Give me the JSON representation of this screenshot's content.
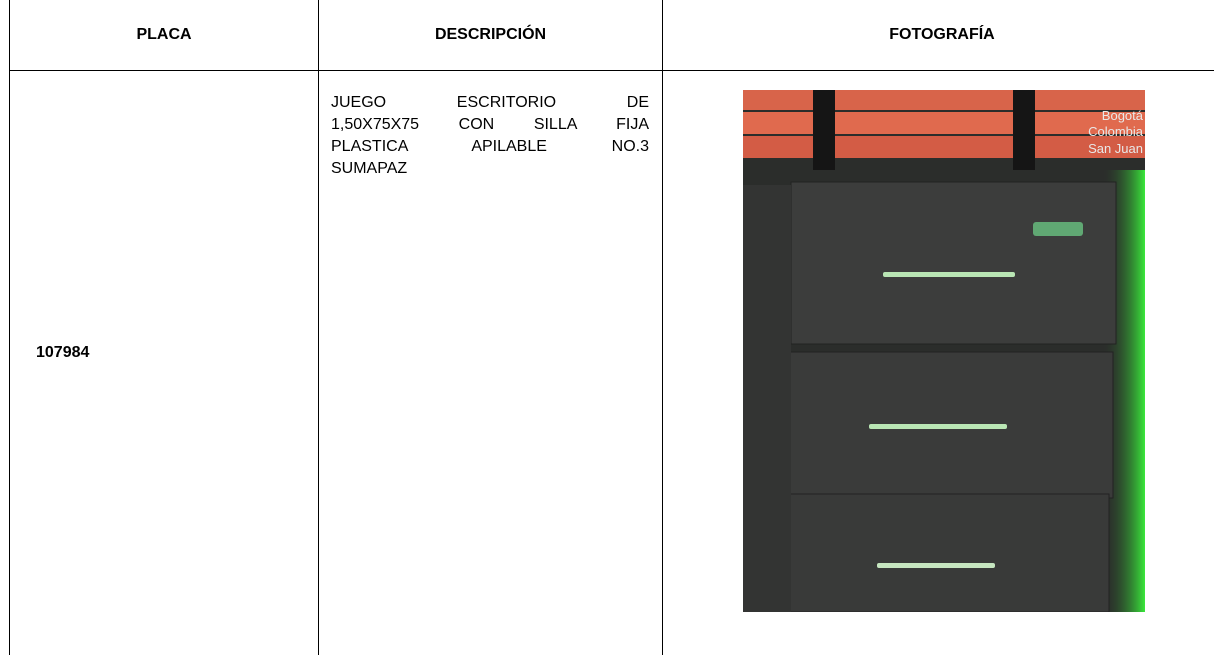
{
  "table": {
    "header": [
      "PLACA",
      "DESCRIPCIÓN",
      "FOTOGRAFÍA"
    ],
    "rows": [
      {
        "placa": "107984",
        "descripcion": [
          "JUEGO ESCRITORIO DE",
          "1,50X75X75 CON SILLA FIJA",
          "PLASTICA APILABLE NO.3",
          "SUMAPAZ"
        ],
        "foto_overlay": [
          "Bogotá",
          "Colombia",
          "San Juan"
        ]
      }
    ]
  }
}
